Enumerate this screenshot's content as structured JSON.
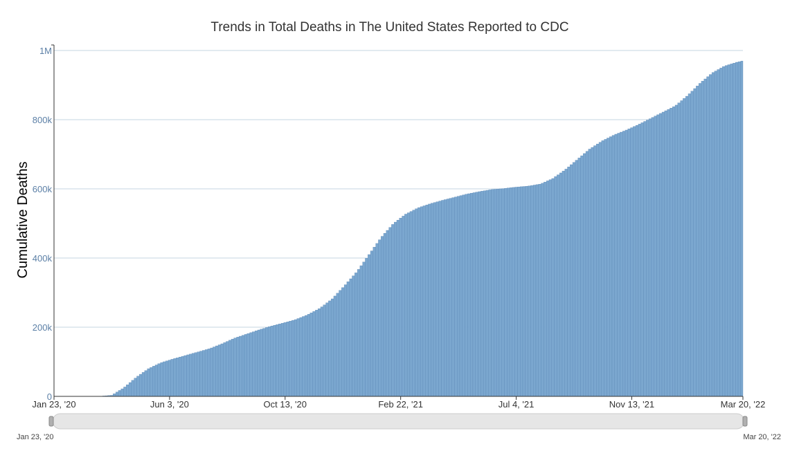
{
  "chart_data": {
    "type": "bar",
    "title": "Trends in Total Deaths in The United States Reported to CDC",
    "xlabel": "",
    "ylabel": "Cumulative Deaths",
    "x_start": "2020-01-23",
    "x_end": "2022-03-20",
    "ylim": [
      0,
      1000000
    ],
    "y_ticks": [
      {
        "value": 0,
        "label": "0"
      },
      {
        "value": 200000,
        "label": "200k"
      },
      {
        "value": 400000,
        "label": "400k"
      },
      {
        "value": 600000,
        "label": "600k"
      },
      {
        "value": 800000,
        "label": "800k"
      },
      {
        "value": 1000000,
        "label": "1M"
      }
    ],
    "x_ticks": [
      {
        "date": "2020-01-23",
        "label": "Jan 23, '20"
      },
      {
        "date": "2020-06-03",
        "label": "Jun 3, '20"
      },
      {
        "date": "2020-10-13",
        "label": "Oct 13, '20"
      },
      {
        "date": "2021-02-22",
        "label": "Feb 22, '21"
      },
      {
        "date": "2021-07-04",
        "label": "Jul 4, '21"
      },
      {
        "date": "2021-11-13",
        "label": "Nov 13, '21"
      },
      {
        "date": "2022-03-20",
        "label": "Mar 20, '22"
      }
    ],
    "series": [
      {
        "values": [
          [
            "2020-01-23",
            0
          ],
          [
            "2020-03-01",
            0
          ],
          [
            "2020-03-15",
            100
          ],
          [
            "2020-03-29",
            3000
          ],
          [
            "2020-04-12",
            25000
          ],
          [
            "2020-04-26",
            55000
          ],
          [
            "2020-05-10",
            80000
          ],
          [
            "2020-05-24",
            97000
          ],
          [
            "2020-06-07",
            108000
          ],
          [
            "2020-06-21",
            118000
          ],
          [
            "2020-07-05",
            128000
          ],
          [
            "2020-07-19",
            138000
          ],
          [
            "2020-08-02",
            152000
          ],
          [
            "2020-08-16",
            168000
          ],
          [
            "2020-08-30",
            180000
          ],
          [
            "2020-09-13",
            192000
          ],
          [
            "2020-09-27",
            203000
          ],
          [
            "2020-10-11",
            212000
          ],
          [
            "2020-10-25",
            222000
          ],
          [
            "2020-11-08",
            236000
          ],
          [
            "2020-11-22",
            255000
          ],
          [
            "2020-12-06",
            282000
          ],
          [
            "2020-12-20",
            320000
          ],
          [
            "2021-01-03",
            360000
          ],
          [
            "2021-01-17",
            410000
          ],
          [
            "2021-01-31",
            460000
          ],
          [
            "2021-02-14",
            500000
          ],
          [
            "2021-02-28",
            527000
          ],
          [
            "2021-03-14",
            545000
          ],
          [
            "2021-03-28",
            557000
          ],
          [
            "2021-04-11",
            567000
          ],
          [
            "2021-04-25",
            576000
          ],
          [
            "2021-05-09",
            585000
          ],
          [
            "2021-05-23",
            592000
          ],
          [
            "2021-06-06",
            598000
          ],
          [
            "2021-06-20",
            601000
          ],
          [
            "2021-07-04",
            605000
          ],
          [
            "2021-07-18",
            608000
          ],
          [
            "2021-08-01",
            614000
          ],
          [
            "2021-08-15",
            630000
          ],
          [
            "2021-08-29",
            655000
          ],
          [
            "2021-09-12",
            685000
          ],
          [
            "2021-09-26",
            715000
          ],
          [
            "2021-10-10",
            738000
          ],
          [
            "2021-10-24",
            756000
          ],
          [
            "2021-11-07",
            770000
          ],
          [
            "2021-11-21",
            786000
          ],
          [
            "2021-12-05",
            804000
          ],
          [
            "2021-12-19",
            822000
          ],
          [
            "2022-01-02",
            840000
          ],
          [
            "2022-01-16",
            870000
          ],
          [
            "2022-01-30",
            905000
          ],
          [
            "2022-02-13",
            935000
          ],
          [
            "2022-02-27",
            955000
          ],
          [
            "2022-03-13",
            966000
          ],
          [
            "2022-03-20",
            970000
          ]
        ]
      }
    ],
    "bar_color": "#7ba7cf",
    "bar_edge_color": "#5a87b5",
    "grid": true,
    "grid_color": "#c4d4e2",
    "axis_text_color": "#5b7fa6",
    "axis_line_color": "#333333"
  },
  "range_selector": {
    "start_label": "Jan 23, '20",
    "end_label": "Mar 20, '22"
  }
}
